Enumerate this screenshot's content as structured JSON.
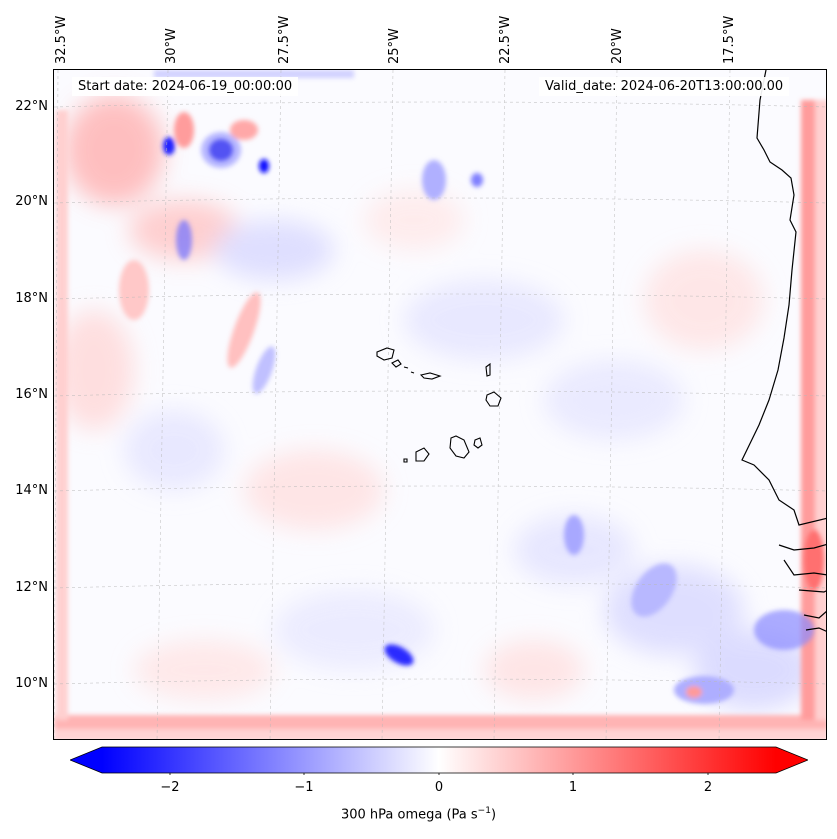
{
  "map": {
    "start_date": "Start date: 2024-06-19_00:00:00",
    "valid_date": "Valid_date: 2024-06-20T13:00:00.00",
    "lon_labels": [
      "32.5°W",
      "30°W",
      "27.5°W",
      "25°W",
      "22.5°W",
      "20°W",
      "17.5°W"
    ],
    "lat_labels": [
      "22°N",
      "20°N",
      "18°N",
      "16°N",
      "14°N",
      "12°N",
      "10°N"
    ],
    "colors": {
      "negative": "#0000ff",
      "neutral": "#ffffff",
      "positive": "#ff0000",
      "coast": "#000000"
    }
  },
  "colorbar": {
    "ticks": [
      "−2",
      "−1",
      "0",
      "1",
      "2"
    ],
    "tick_values": [
      -2,
      -1,
      0,
      1,
      2
    ],
    "range": [
      -2.5,
      2.5
    ],
    "label_main": "300 hPa omega (Pa s",
    "label_sup": "−1",
    "label_close": ")"
  }
}
